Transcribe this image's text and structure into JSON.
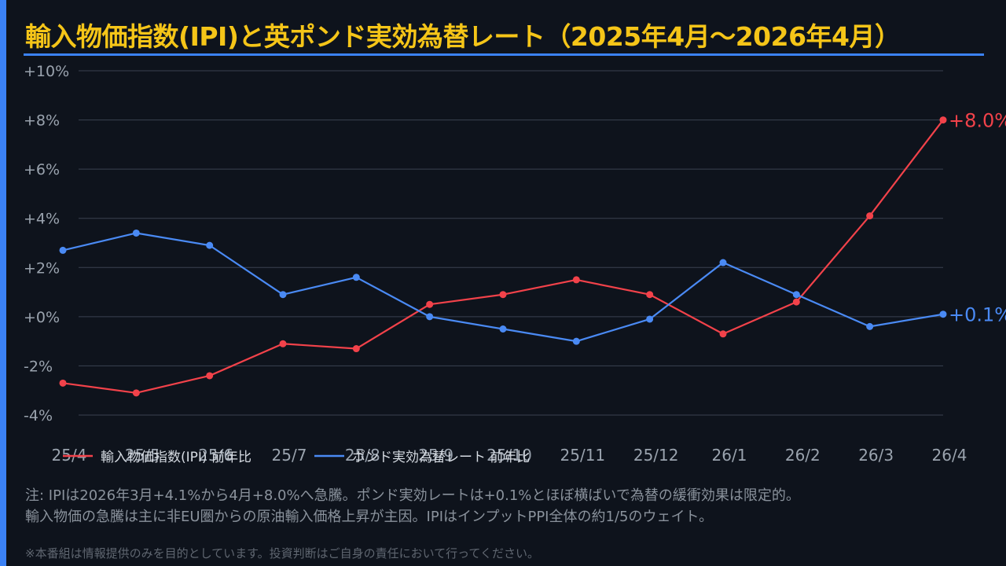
{
  "title": "輸入物価指数(IPI)と英ポンド実効為替レート（2025年4月〜2026年4月）",
  "colors": {
    "accent_bar": "#3b82f6",
    "title": "#f5c518",
    "title_rule": "#3b82f6",
    "ipi": "#f2424a",
    "gbp": "#4a8af4"
  },
  "chart_data": {
    "type": "line",
    "categories": [
      "25/4",
      "25/5",
      "25/6",
      "25/7",
      "25/8",
      "25/9",
      "25/10",
      "25/11",
      "25/12",
      "26/1",
      "26/2",
      "26/3",
      "26/4"
    ],
    "series": [
      {
        "name": "輸入物価指数(IPI) 前年比",
        "color": "#f2424a",
        "values": [
          -2.7,
          -3.1,
          -2.4,
          -1.1,
          -1.3,
          0.5,
          0.9,
          1.5,
          0.9,
          -0.7,
          0.6,
          4.1,
          8.0
        ],
        "end_label": "+8.0%"
      },
      {
        "name": "ポンド実効為替レート 前年比",
        "color": "#4a8af4",
        "values": [
          2.7,
          3.4,
          2.9,
          0.9,
          1.6,
          0.0,
          -0.5,
          -1.0,
          -0.1,
          2.2,
          0.9,
          -0.4,
          0.1
        ],
        "end_label": "+0.1%"
      }
    ],
    "yticks": [
      10,
      8,
      6,
      4,
      2,
      0,
      -2,
      -4
    ],
    "ytick_labels": [
      "+10%",
      "+8%",
      "+6%",
      "+4%",
      "+2%",
      "+0%",
      "-2%",
      "-4%"
    ],
    "ylim": [
      -4,
      10
    ],
    "grid": true,
    "legend_position": "bottom-left"
  },
  "notes": [
    "注: IPIは2026年3月+4.1%から4月+8.0%へ急騰。ポンド実効レートは+0.1%とほぼ横ばいで為替の緩衝効果は限定的。",
    "輸入物価の急騰は主に非EU圏からの原油輸入価格上昇が主因。IPIはインプットPPI全体の約1/5のウェイト。"
  ],
  "disclaimer": "※本番組は情報提供のみを目的としています。投資判断はご自身の責任において行ってください。"
}
